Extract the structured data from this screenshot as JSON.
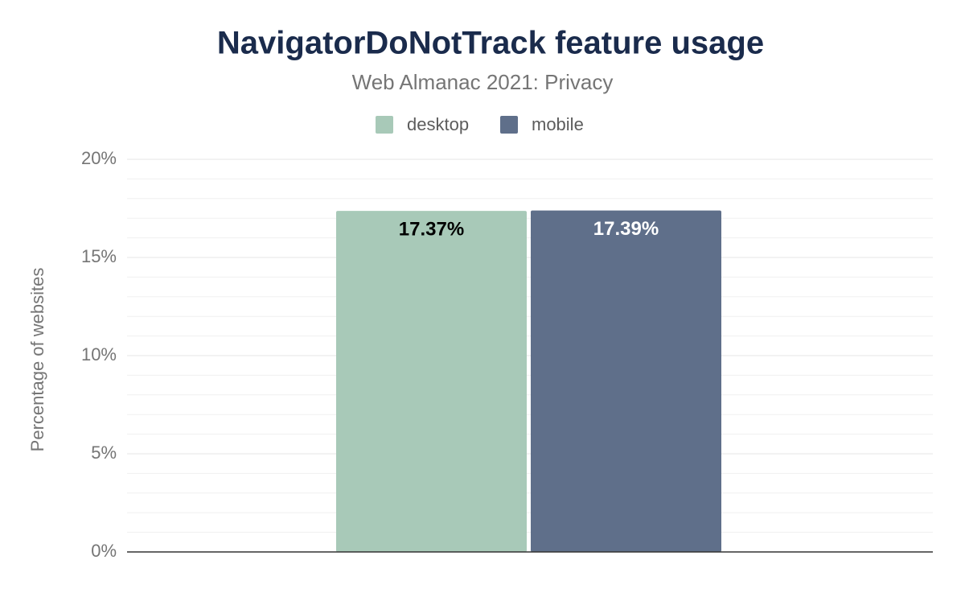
{
  "chart_data": {
    "type": "bar",
    "title": "NavigatorDoNotTrack feature usage",
    "subtitle": "Web Almanac 2021: Privacy",
    "y_label": "Percentage of websites",
    "categories": [
      null
    ],
    "series": [
      {
        "name": "desktop",
        "color": "#a8c9b8",
        "values": [
          17.37
        ],
        "value_labels": [
          "17.37%"
        ]
      },
      {
        "name": "mobile",
        "color": "#5f6f8a",
        "values": [
          17.39
        ],
        "value_labels": [
          "17.39%"
        ]
      }
    ],
    "ylim": [
      0,
      20
    ],
    "yticks": [
      {
        "value": 0,
        "label": "0%"
      },
      {
        "value": 5,
        "label": "5%"
      },
      {
        "value": 10,
        "label": "10%"
      },
      {
        "value": 15,
        "label": "15%"
      },
      {
        "value": 20,
        "label": "20%"
      }
    ],
    "minor_yticks": [
      1,
      2,
      3,
      4,
      6,
      7,
      8,
      9,
      11,
      12,
      13,
      14,
      16,
      17,
      18,
      19
    ],
    "grid": true,
    "legend": "top"
  }
}
